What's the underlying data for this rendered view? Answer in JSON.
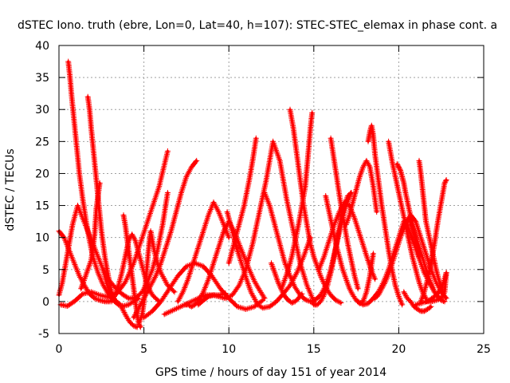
{
  "chart_data": {
    "type": "scatter",
    "title": "dSTEC Iono. truth (ebre, Lon=0, Lat=40, h=107): STEC-STEC_elemax in phase cont. a",
    "xlabel": "GPS time / hours of day 151 of year 2014",
    "ylabel": "dSTEC  / TECUs",
    "xlim": [
      0,
      25
    ],
    "ylim": [
      -5,
      40
    ],
    "xticks": [
      "0",
      "5",
      "10",
      "15",
      "20",
      "25"
    ],
    "yticks": [
      "-5",
      "0",
      "5",
      "10",
      "15",
      "20",
      "25",
      "30",
      "35",
      "40"
    ],
    "grid": true,
    "marker": "plus",
    "color": "#ff0000",
    "series": [
      {
        "x": [
          0.0,
          0.3,
          0.6,
          0.9,
          1.2,
          1.5,
          1.8,
          2.1,
          2.4,
          2.7,
          3.0
        ],
        "y": [
          11,
          10,
          8,
          6,
          4,
          2.5,
          1.2,
          0.5,
          0.2,
          0,
          0
        ]
      },
      {
        "x": [
          0.0,
          0.2,
          0.4,
          0.6,
          0.8,
          1.1,
          1.4,
          1.7,
          2.0,
          2.3,
          2.6,
          2.9,
          3.3,
          3.7,
          4.1,
          4.5,
          4.9,
          5.2,
          5.5,
          5.8,
          6.1,
          6.4
        ],
        "y": [
          1,
          3,
          6,
          9,
          12,
          15,
          13,
          11,
          9,
          7,
          5,
          3.5,
          2.2,
          1.2,
          0.5,
          0.5,
          1.5,
          3,
          5,
          8,
          12,
          17
        ]
      },
      {
        "x": [
          0.1,
          0.5,
          0.9,
          1.4,
          1.9,
          2.4,
          2.9,
          3.4,
          3.9,
          4.4,
          4.9,
          5.4,
          5.9,
          6.4
        ],
        "y": [
          -0.5,
          -0.7,
          0,
          1.2,
          1.5,
          1.0,
          0.7,
          1.2,
          3.0,
          6.0,
          10.0,
          14.0,
          18.0,
          23.5
        ]
      },
      {
        "x": [
          0.55,
          0.65,
          0.75,
          0.9,
          1.05,
          1.2,
          1.4,
          1.6,
          1.8,
          2.0,
          2.3,
          2.6,
          2.9,
          3.2,
          3.5,
          3.8,
          4.1,
          4.4,
          4.7
        ],
        "y": [
          37.5,
          35,
          32,
          28,
          24,
          20,
          16,
          12.5,
          9.5,
          7,
          4.5,
          2.6,
          1.2,
          0.2,
          -0.5,
          -0.7,
          -0.5,
          0,
          0.5
        ]
      },
      {
        "x": [
          1.7,
          1.8,
          1.9,
          2.05,
          2.2,
          2.35,
          2.5,
          2.7,
          2.9,
          3.1,
          3.3
        ],
        "y": [
          32,
          30,
          27,
          23,
          19,
          15,
          11,
          7,
          4,
          1.5,
          0
        ]
      },
      {
        "x": [
          2.4,
          2.3,
          2.2,
          2.15,
          2.1,
          2.0,
          1.9,
          1.7,
          1.5,
          1.3
        ],
        "y": [
          18.5,
          16.5,
          14.5,
          12.5,
          10.5,
          8.5,
          6.5,
          5.0,
          3.5,
          2.0
        ]
      },
      {
        "x": [
          2.6,
          2.8,
          3.0,
          3.2,
          3.4,
          3.6,
          3.8,
          4.0,
          4.2,
          4.4,
          4.6
        ],
        "y": [
          5,
          3,
          1.5,
          0.5,
          0,
          -0.5,
          -1.5,
          -2.5,
          -3.3,
          -3.8,
          -4.0
        ]
      },
      {
        "x": [
          3.1,
          3.3,
          3.5,
          3.7,
          3.9,
          4.1,
          4.3,
          4.5,
          4.7,
          4.9,
          5.1,
          5.3,
          5.5,
          5.7,
          5.9
        ],
        "y": [
          0,
          1,
          2.5,
          4.5,
          7,
          9.5,
          10.5,
          9.5,
          7.5,
          5.5,
          3.5,
          2.0,
          1.0,
          0.5,
          0
        ]
      },
      {
        "x": [
          3.8,
          3.9,
          4.0,
          4.1,
          4.2,
          4.3,
          4.4,
          4.5,
          4.6,
          4.7,
          4.8
        ],
        "y": [
          13.5,
          12,
          10,
          8,
          6,
          4,
          2,
          0,
          -2,
          -3.5,
          -4
        ]
      },
      {
        "x": [
          4.7,
          4.9,
          5.0,
          5.1,
          5.2,
          5.3,
          5.4,
          5.6,
          5.8,
          6.0,
          6.2,
          6.4,
          6.6,
          6.8
        ],
        "y": [
          -3.5,
          -2.0,
          0,
          3,
          6,
          9,
          11,
          8,
          6,
          4.5,
          3.5,
          2.5,
          2.0,
          1.5
        ]
      },
      {
        "x": [
          4.4,
          4.6,
          4.8,
          5.0,
          5.2,
          5.4,
          5.7,
          6.0,
          6.3,
          6.6,
          6.9,
          7.2,
          7.5,
          7.8,
          8.1
        ],
        "y": [
          -2.5,
          -1.5,
          -0.5,
          0.5,
          1.5,
          2.5,
          4,
          6,
          8.5,
          11,
          14,
          17,
          19.5,
          21,
          22
        ]
      },
      {
        "x": [
          5.0,
          5.5,
          6.0,
          6.5,
          7.0,
          7.5,
          8.0,
          8.5,
          9.0,
          9.5,
          10.0,
          10.5,
          11.0,
          11.5,
          12.0
        ],
        "y": [
          -2.5,
          -1.5,
          0,
          2,
          4,
          5.5,
          6,
          5.5,
          4.0,
          2.0,
          0.5,
          -0.8,
          -1.2,
          -0.8,
          0.2
        ]
      },
      {
        "x": [
          6.2,
          6.6,
          7.0,
          7.4,
          7.8,
          8.2,
          8.6,
          9.0,
          9.4,
          9.8
        ],
        "y": [
          -2,
          -1.5,
          -1,
          -0.5,
          0,
          0.5,
          1,
          1,
          1,
          1.3
        ]
      },
      {
        "x": [
          7.0,
          7.3,
          7.6,
          7.9,
          8.2,
          8.5,
          8.8,
          9.1,
          9.4,
          9.7,
          10.0
        ],
        "y": [
          0,
          1.5,
          3.5,
          6,
          8.5,
          11,
          13.5,
          15.5,
          14,
          12,
          10
        ]
      },
      {
        "x": [
          7.4,
          7.6,
          7.8,
          8.0,
          8.2,
          8.5,
          8.8,
          9.1,
          9.4,
          9.7,
          10.0,
          10.3,
          10.6,
          10.9,
          11.2,
          11.5,
          11.8,
          12.1
        ],
        "y": [
          -0.5,
          -0.5,
          -0.8,
          -0.5,
          0,
          1.5,
          3.5,
          6,
          8.5,
          11,
          12.5,
          11,
          9,
          7,
          5,
          3.2,
          1.8,
          0.5
        ]
      },
      {
        "x": [
          8.2,
          8.5,
          8.8,
          9.1,
          9.4,
          9.8,
          10.2,
          10.6,
          11.0,
          11.4,
          11.8,
          12.2,
          12.6,
          13.0,
          13.4,
          13.8,
          14.2,
          14.6,
          15.0
        ],
        "y": [
          -0.5,
          0.2,
          0.8,
          1.0,
          0.8,
          0.5,
          1.0,
          2.5,
          5,
          9,
          14,
          19,
          25,
          22,
          16,
          11,
          6,
          2.5,
          0
        ]
      },
      {
        "x": [
          9.9,
          10.2,
          10.5,
          10.8,
          11.1,
          11.3,
          11.5,
          11.7,
          12.0,
          12.4,
          12.8,
          13.2,
          13.6,
          14.0,
          14.4,
          14.8
        ],
        "y": [
          14,
          11,
          8,
          5.5,
          3,
          1.5,
          0.5,
          -0.5,
          -1,
          -0.8,
          0,
          1.2,
          2.5,
          4.5,
          7,
          10
        ]
      },
      {
        "x": [
          10.0,
          10.3,
          10.6,
          10.9,
          11.2,
          11.4,
          11.6
        ],
        "y": [
          6,
          9,
          12,
          15,
          19,
          22,
          25.5
        ]
      },
      {
        "x": [
          12.1,
          12.4,
          12.7,
          13.0,
          13.3,
          13.6,
          13.9,
          14.2,
          14.5,
          14.8,
          15.1,
          15.4,
          15.7,
          16.0,
          16.3,
          16.6,
          16.9,
          17.2
        ],
        "y": [
          17,
          15,
          12,
          9,
          6,
          4,
          2.2,
          1,
          0.3,
          0,
          0.3,
          1.0,
          2.5,
          5,
          8.5,
          12,
          15,
          17
        ]
      },
      {
        "x": [
          12.5,
          12.7,
          12.9,
          13.1,
          13.3,
          13.5,
          13.7,
          13.9,
          14.1,
          14.3
        ],
        "y": [
          6,
          4.5,
          3,
          1.8,
          0.8,
          0.2,
          -0.2,
          0,
          0.5,
          1.2
        ]
      },
      {
        "x": [
          13.6,
          13.8,
          14.0,
          14.2,
          14.4,
          14.6,
          14.8,
          15.0,
          15.2,
          15.4,
          15.6,
          15.8,
          16.0,
          16.3,
          16.6
        ],
        "y": [
          30,
          27,
          23,
          19,
          15,
          12,
          9,
          7,
          5.5,
          4,
          2.8,
          1.8,
          1,
          0.2,
          -0.2
        ]
      },
      {
        "x": [
          14.9,
          14.8,
          14.7,
          14.6,
          14.5,
          14.3,
          14.1,
          13.9,
          13.7,
          13.5,
          13.3,
          13.1
        ],
        "y": [
          29.5,
          27,
          24,
          21,
          18,
          15,
          12,
          9.5,
          7,
          5,
          3.5,
          2
        ]
      },
      {
        "x": [
          14.9,
          15.0,
          15.2,
          15.4,
          15.6,
          15.8,
          16.0,
          16.2,
          16.4,
          16.6,
          16.8,
          17.0,
          17.2
        ],
        "y": [
          0,
          -0.5,
          -0.5,
          0,
          1,
          2.5,
          4.5,
          7,
          10,
          13,
          15,
          16.5,
          17
        ]
      },
      {
        "x": [
          15.3,
          15.6,
          15.9,
          16.2,
          16.5,
          16.8,
          17.1,
          17.4,
          17.7,
          18.0,
          18.3,
          18.6
        ],
        "y": [
          5,
          7,
          9.5,
          12,
          14,
          15.5,
          15,
          13,
          10.5,
          8,
          5.5,
          3.5
        ]
      },
      {
        "x": [
          15.7,
          15.9,
          16.1,
          16.3,
          16.5,
          16.7,
          16.9,
          17.1,
          17.3,
          17.5,
          17.7,
          17.9,
          18.1,
          18.3,
          18.5
        ],
        "y": [
          16.5,
          14,
          11.5,
          9,
          7,
          5,
          3.5,
          2,
          1,
          0.2,
          -0.3,
          0,
          1.5,
          4,
          7.5
        ]
      },
      {
        "x": [
          16.0,
          16.2,
          16.4,
          16.6,
          16.8,
          17.0,
          17.2,
          17.4,
          17.6
        ],
        "y": [
          25.5,
          22,
          18.5,
          15,
          12,
          9,
          6.5,
          4,
          2
        ]
      },
      {
        "x": [
          16.9,
          17.1,
          17.3,
          17.5,
          17.7,
          17.9,
          18.1,
          18.3,
          18.5,
          18.7
        ],
        "y": [
          12,
          13.5,
          15.5,
          17.5,
          19.5,
          21,
          22,
          21,
          18,
          14
        ]
      },
      {
        "x": [
          17.6,
          17.9,
          18.2,
          18.5,
          18.8,
          19.1,
          19.4,
          19.7,
          20.0,
          20.3,
          20.6,
          20.9,
          21.2,
          21.5,
          21.8,
          22.1
        ],
        "y": [
          0,
          -0.5,
          -0.3,
          0.5,
          1.5,
          3,
          5,
          7.5,
          10,
          12.5,
          13,
          11,
          8.5,
          6,
          3.5,
          1.5
        ]
      },
      {
        "x": [
          18.2,
          18.3,
          18.4,
          18.5,
          18.6,
          18.8,
          19.0,
          19.2,
          19.4,
          19.6,
          19.8,
          20.0,
          20.2
        ],
        "y": [
          25,
          26.5,
          27.5,
          26,
          23,
          19,
          15,
          11.5,
          8,
          5,
          2.5,
          0.8,
          -0.5
        ]
      },
      {
        "x": [
          18.6,
          18.8,
          19.0,
          19.2,
          19.5,
          19.8,
          20.1,
          20.4,
          20.7,
          21.0,
          21.3,
          21.6,
          21.9,
          22.2,
          22.5,
          22.8
        ],
        "y": [
          0.5,
          1,
          2,
          3,
          5,
          7.5,
          10,
          12,
          13.5,
          12.5,
          10,
          7.5,
          5,
          3,
          1.5,
          0.5
        ]
      },
      {
        "x": [
          19.4,
          19.6,
          19.8,
          20.0,
          20.2,
          20.4,
          20.6,
          20.8,
          21.0,
          21.2,
          21.4,
          21.6
        ],
        "y": [
          25,
          22,
          19.5,
          17,
          14.5,
          12,
          9.5,
          7,
          5,
          3,
          1.5,
          0.5
        ]
      },
      {
        "x": [
          19.9,
          20.0,
          20.1,
          20.2,
          20.3,
          20.4,
          20.6,
          20.8,
          21.0,
          21.2
        ],
        "y": [
          21.5,
          21,
          20.5,
          19.5,
          18.5,
          17,
          14.5,
          12,
          9.5,
          7
        ]
      },
      {
        "x": [
          20.3,
          20.5,
          20.7,
          20.9,
          21.1,
          21.3,
          21.5,
          21.7,
          21.9
        ],
        "y": [
          1.5,
          0.5,
          0,
          -0.8,
          -1.2,
          -1.5,
          -1.5,
          -1.2,
          -0.8
        ]
      },
      {
        "x": [
          20.5,
          20.7,
          20.9,
          21.1,
          21.3,
          21.5,
          21.7,
          21.9,
          22.1,
          22.3,
          22.5,
          22.7
        ],
        "y": [
          12,
          10.5,
          9,
          7.5,
          6,
          4.5,
          3.5,
          2.5,
          1.5,
          0.8,
          0.2,
          0
        ]
      },
      {
        "x": [
          21.2,
          21.3,
          21.4,
          21.5,
          21.6,
          21.8,
          22.0,
          22.2,
          22.4,
          22.6
        ],
        "y": [
          22,
          20,
          17.5,
          15,
          12.5,
          10,
          7.5,
          5,
          3,
          1.5
        ]
      },
      {
        "x": [
          21.3,
          21.5,
          21.7,
          21.9,
          22.1,
          22.3,
          22.5,
          22.7,
          22.8
        ],
        "y": [
          0,
          1.5,
          3.5,
          6,
          9,
          12.5,
          15.5,
          18.5,
          19
        ]
      },
      {
        "x": [
          21.0,
          21.4,
          21.8,
          22.2,
          22.5,
          22.7,
          22.8
        ],
        "y": [
          -0.5,
          -0.2,
          0.2,
          1,
          2,
          3.5,
          4.5
        ]
      },
      {
        "x": [
          21.6,
          21.9,
          22.2,
          22.5,
          22.7,
          22.8
        ],
        "y": [
          0,
          0,
          0.2,
          0.5,
          1.5,
          4.5
        ]
      }
    ]
  }
}
